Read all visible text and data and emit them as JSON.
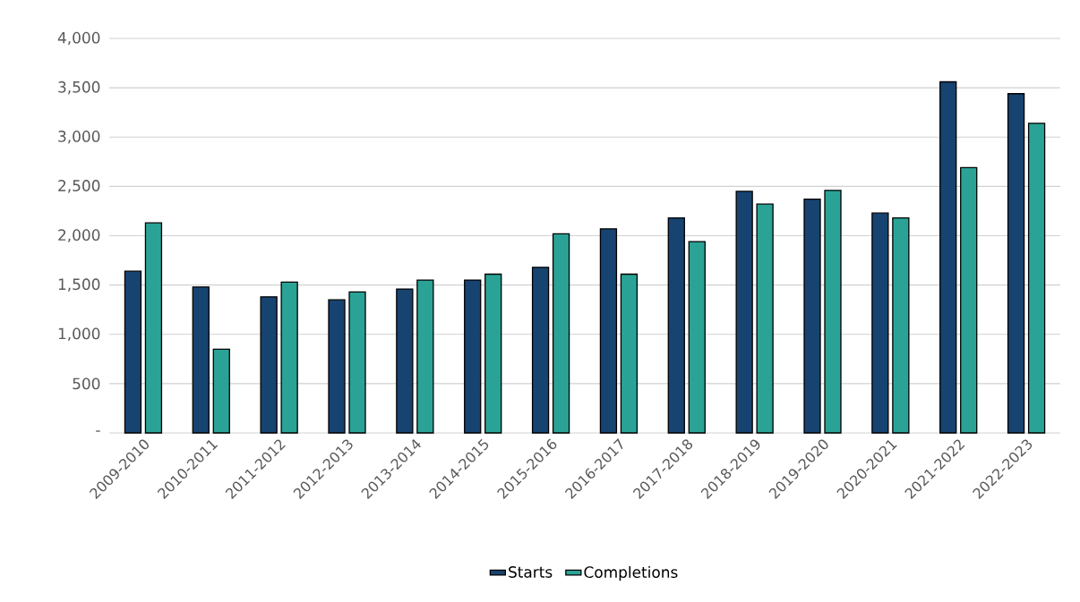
{
  "chart_data": {
    "type": "bar",
    "categories": [
      "2009-2010",
      "2010-2011",
      "2011-2012",
      "2012-2013",
      "2013-2014",
      "2014-2015",
      "2015-2016",
      "2016-2017",
      "2017-2018",
      "2018-2019",
      "2019-2020",
      "2020-2021",
      "2021-2022",
      "2022-2023"
    ],
    "series": [
      {
        "name": "Starts",
        "color": "#174370",
        "values": [
          1640,
          1480,
          1380,
          1350,
          1460,
          1550,
          1680,
          2070,
          2180,
          2450,
          2370,
          2230,
          3560,
          3440
        ]
      },
      {
        "name": "Completions",
        "color": "#2aa396",
        "values": [
          2130,
          850,
          1530,
          1430,
          1550,
          1610,
          2020,
          1610,
          1940,
          2320,
          2460,
          2180,
          2690,
          3140
        ]
      }
    ],
    "ylim": [
      0,
      4000
    ],
    "yticks": [
      {
        "value": 0,
        "label": "-"
      },
      500,
      {
        "value": 1000,
        "label": "1,000"
      },
      {
        "value": 1500,
        "label": "1,500"
      },
      {
        "value": 2000,
        "label": "2,000"
      },
      {
        "value": 2500,
        "label": "2,500"
      },
      {
        "value": 3000,
        "label": "3,000"
      },
      {
        "value": 3500,
        "label": "3,500"
      },
      {
        "value": 4000,
        "label": "4,000"
      }
    ],
    "grid": "y",
    "legend": "bottom"
  }
}
